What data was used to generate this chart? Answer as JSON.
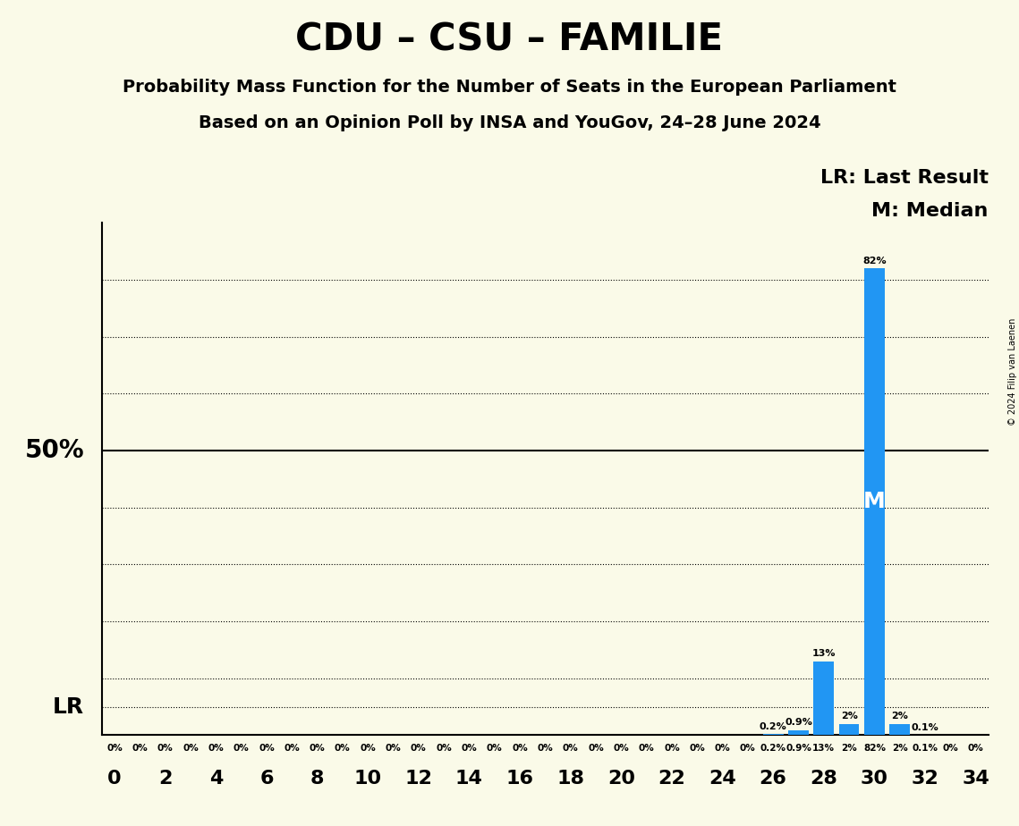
{
  "title": "CDU – CSU – FAMILIE",
  "subtitle1": "Probability Mass Function for the Number of Seats in the European Parliament",
  "subtitle2": "Based on an Opinion Poll by INSA and YouGov, 24–28 June 2024",
  "copyright": "© 2024 Filip van Laenen",
  "seats": [
    0,
    1,
    2,
    3,
    4,
    5,
    6,
    7,
    8,
    9,
    10,
    11,
    12,
    13,
    14,
    15,
    16,
    17,
    18,
    19,
    20,
    21,
    22,
    23,
    24,
    25,
    26,
    27,
    28,
    29,
    30,
    31,
    32,
    33,
    34
  ],
  "probabilities": [
    0,
    0,
    0,
    0,
    0,
    0,
    0,
    0,
    0,
    0,
    0,
    0,
    0,
    0,
    0,
    0,
    0,
    0,
    0,
    0,
    0,
    0,
    0,
    0,
    0,
    0,
    0.2,
    0.9,
    13,
    2,
    82,
    2,
    0.1,
    0,
    0
  ],
  "bar_color": "#2196F3",
  "last_result_seat": 27,
  "last_result_label": "LR",
  "median_seat": 30,
  "median_label": "M",
  "background_color": "#FAFAE8",
  "xlim": [
    -0.5,
    34.5
  ],
  "ylim": [
    0,
    90
  ],
  "yticks": [
    10,
    20,
    30,
    40,
    50,
    60,
    70,
    80
  ],
  "xticks": [
    0,
    2,
    4,
    6,
    8,
    10,
    12,
    14,
    16,
    18,
    20,
    22,
    24,
    26,
    28,
    30,
    32,
    34
  ],
  "lr_pct": 5.0,
  "median_pct": 41.0,
  "legend_lr": "LR: Last Result",
  "legend_m": "M: Median"
}
